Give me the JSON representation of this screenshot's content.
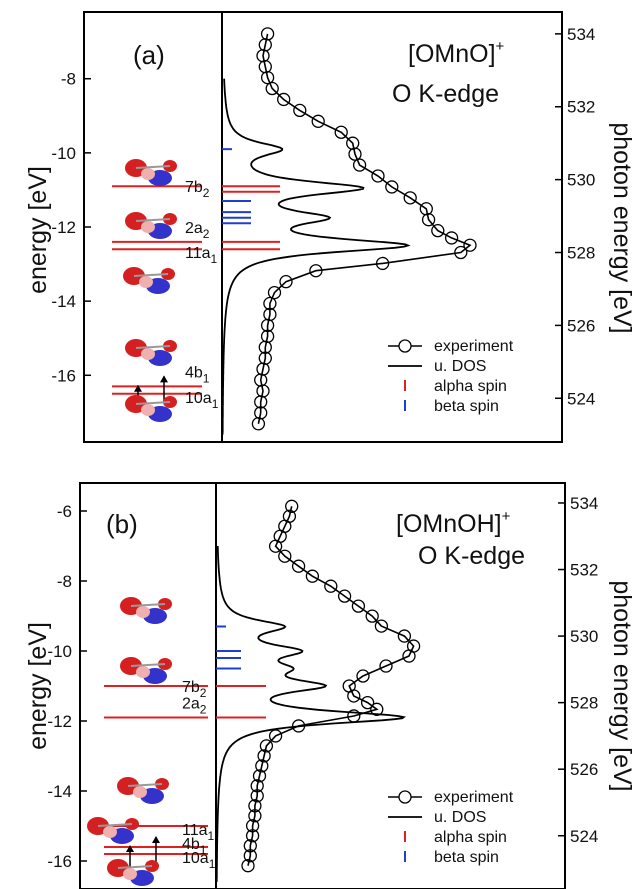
{
  "chart_data": [
    {
      "type": "line",
      "panel_label": "(a)",
      "title_line1": "[OMnO]",
      "title_sup": "+",
      "title_line2": "O K-edge",
      "ylabel_left": "energy [eV]",
      "ylabel_right": "photon energy [eV]",
      "left_ylim": [
        -17.8,
        -6.2
      ],
      "right_ylim": [
        522.8,
        534.6
      ],
      "left_ticks": [
        -8,
        -10,
        -12,
        -14,
        -16
      ],
      "right_ticks": [
        524,
        526,
        528,
        530,
        532,
        534
      ],
      "orbital_levels": [
        {
          "energy": -10.9,
          "label": "7b",
          "sub": "2"
        },
        {
          "energy": -12.4,
          "label": "2a",
          "sub": "2"
        },
        {
          "energy": -12.6,
          "label": "11a",
          "sub": "1"
        },
        {
          "energy": -16.3,
          "label": "4b",
          "sub": "1"
        },
        {
          "energy": -16.5,
          "label": "10a",
          "sub": "1"
        }
      ],
      "alpha_sticks": [
        -10.9,
        -11.05,
        -12.4,
        -12.6
      ],
      "beta_sticks": [
        -9.9,
        -11.3,
        -11.6,
        -11.75,
        -11.9
      ],
      "udos_peaks": [
        {
          "energy": -9.9,
          "amplitude": 0.25
        },
        {
          "energy": -10.95,
          "amplitude": 0.62
        },
        {
          "energy": -11.75,
          "amplitude": 0.4
        },
        {
          "energy": -12.5,
          "amplitude": 0.84
        }
      ],
      "experiment": {
        "photon_energy": [
          523.3,
          523.6,
          523.9,
          524.2,
          524.5,
          524.8,
          525.1,
          525.4,
          525.7,
          526.0,
          526.3,
          526.6,
          526.9,
          527.2,
          527.5,
          527.7,
          528.0,
          528.2,
          528.4,
          528.6,
          528.9,
          529.2,
          529.5,
          529.8,
          530.1,
          530.4,
          530.7,
          531.0,
          531.3,
          531.6,
          531.9,
          532.2,
          532.5,
          532.8,
          533.1,
          533.4,
          533.7,
          534.0
        ],
        "intensity": [
          0.08,
          0.09,
          0.09,
          0.1,
          0.09,
          0.1,
          0.11,
          0.11,
          0.12,
          0.12,
          0.13,
          0.13,
          0.15,
          0.2,
          0.33,
          0.62,
          0.96,
          1.0,
          0.92,
          0.86,
          0.82,
          0.81,
          0.74,
          0.66,
          0.6,
          0.52,
          0.5,
          0.49,
          0.44,
          0.34,
          0.26,
          0.19,
          0.14,
          0.12,
          0.11,
          0.1,
          0.11,
          0.12
        ]
      }
    },
    {
      "type": "line",
      "panel_label": "(b)",
      "title_line1": "[OMnOH]",
      "title_sup": "+",
      "title_line2": "O K-edge",
      "ylabel_left": "energy [eV]",
      "ylabel_right": "photon energy [eV]",
      "left_ylim": [
        -16.8,
        -5.2
      ],
      "right_ylim": [
        522.4,
        534.6
      ],
      "left_ticks": [
        -6,
        -8,
        -10,
        -12,
        -14,
        -16
      ],
      "right_ticks": [
        524,
        526,
        528,
        530,
        532,
        534
      ],
      "orbital_levels": [
        {
          "energy": -11.0,
          "label": "7b",
          "sub": "2"
        },
        {
          "energy": -11.9,
          "label": "2a",
          "sub": "2"
        },
        {
          "energy": -15.0,
          "label": "11a",
          "sub": "1"
        },
        {
          "energy": -15.6,
          "label": "4b",
          "sub": "1"
        },
        {
          "energy": -15.8,
          "label": "10a",
          "sub": "1"
        }
      ],
      "alpha_sticks": [
        -11.0,
        -11.9
      ],
      "beta_sticks": [
        -9.3,
        -10.0,
        -10.2,
        -10.5
      ],
      "udos_peaks": [
        {
          "energy": -9.3,
          "amplitude": 0.28
        },
        {
          "energy": -10.0,
          "amplitude": 0.32
        },
        {
          "energy": -10.5,
          "amplitude": 0.22
        },
        {
          "energy": -11.0,
          "amplitude": 0.42
        },
        {
          "energy": -11.9,
          "amplitude": 0.86
        }
      ],
      "experiment": {
        "photon_energy": [
          523.1,
          523.4,
          523.7,
          524.0,
          524.3,
          524.6,
          524.9,
          525.2,
          525.5,
          525.8,
          526.1,
          526.4,
          526.7,
          527.0,
          527.3,
          527.6,
          527.8,
          528.0,
          528.2,
          528.5,
          528.8,
          529.1,
          529.4,
          529.7,
          530.0,
          530.3,
          530.6,
          530.9,
          531.2,
          531.5,
          531.8,
          532.1,
          532.4,
          532.7,
          533.0,
          533.3,
          533.6,
          533.9
        ],
        "intensity": [
          0.1,
          0.11,
          0.11,
          0.12,
          0.12,
          0.13,
          0.13,
          0.14,
          0.14,
          0.15,
          0.16,
          0.17,
          0.18,
          0.22,
          0.32,
          0.56,
          0.66,
          0.62,
          0.56,
          0.54,
          0.6,
          0.7,
          0.8,
          0.82,
          0.78,
          0.68,
          0.64,
          0.58,
          0.52,
          0.46,
          0.38,
          0.32,
          0.26,
          0.22,
          0.24,
          0.26,
          0.28,
          0.29
        ]
      }
    }
  ],
  "legend": {
    "experiment": "experiment",
    "udos": "u. DOS",
    "alpha": "alpha spin",
    "beta": "beta spin"
  },
  "colors": {
    "alpha": "#e02020",
    "beta": "#1f3fcf",
    "line": "#000000",
    "orbital_red": "#d42020",
    "orbital_blue": "#3333cc"
  }
}
